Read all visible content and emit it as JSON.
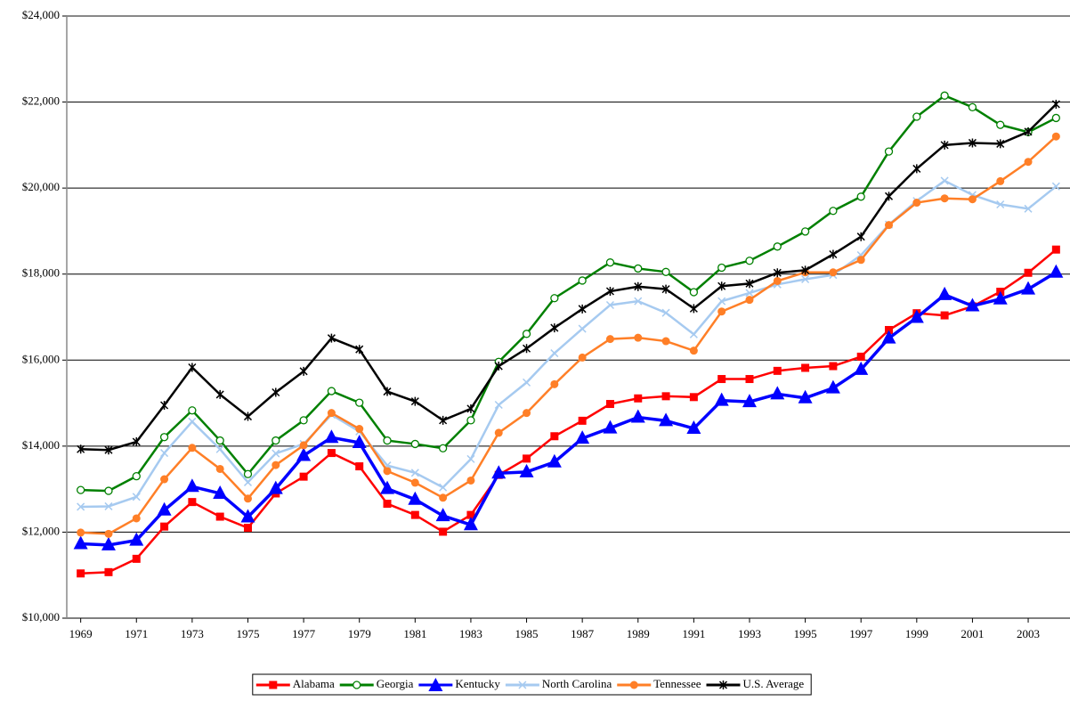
{
  "chart_data": {
    "type": "line",
    "x": [
      1969,
      1970,
      1971,
      1972,
      1973,
      1974,
      1975,
      1976,
      1977,
      1978,
      1979,
      1980,
      1981,
      1982,
      1983,
      1984,
      1985,
      1986,
      1987,
      1988,
      1989,
      1990,
      1991,
      1992,
      1993,
      1994,
      1995,
      1996,
      1997,
      1998,
      1999,
      2000,
      2001,
      2002,
      2003,
      2004
    ],
    "xlim": [
      1968.5,
      2004.5
    ],
    "xticks": [
      1969,
      1971,
      1973,
      1975,
      1977,
      1979,
      1981,
      1983,
      1985,
      1987,
      1989,
      1991,
      1993,
      1995,
      1997,
      1999,
      2001,
      2003
    ],
    "ylim": [
      10000,
      24000
    ],
    "yticks": [
      {
        "value": 10000,
        "label": "$10,000"
      },
      {
        "value": 12000,
        "label": "$12,000"
      },
      {
        "value": 14000,
        "label": "$14,000"
      },
      {
        "value": 16000,
        "label": "$16,000"
      },
      {
        "value": 18000,
        "label": "$18,000"
      },
      {
        "value": 20000,
        "label": "$20,000"
      },
      {
        "value": 22000,
        "label": "$22,000"
      },
      {
        "value": 24000,
        "label": "$24,000"
      }
    ],
    "grid": true,
    "legend": "bottom",
    "series": [
      {
        "name": "Alabama",
        "color": "#ff0000",
        "marker": "square",
        "values": [
          11040,
          11070,
          11380,
          12130,
          12700,
          12360,
          12100,
          12900,
          13290,
          13840,
          13530,
          12660,
          12400,
          12010,
          12400,
          13330,
          13710,
          14230,
          14590,
          14980,
          15110,
          15160,
          15140,
          15560,
          15560,
          15750,
          15820,
          15860,
          16080,
          16700,
          17090,
          17040,
          17250,
          17590,
          18030,
          18570
        ]
      },
      {
        "name": "Georgia",
        "color": "#008000",
        "marker": "open-circle",
        "values": [
          12980,
          12960,
          13300,
          14210,
          14830,
          14130,
          13350,
          14130,
          14600,
          15280,
          15010,
          14130,
          14050,
          13950,
          14600,
          15960,
          16610,
          17440,
          17850,
          18270,
          18130,
          18050,
          17580,
          18150,
          18310,
          18640,
          18990,
          19470,
          19800,
          20850,
          21660,
          22150,
          21880,
          21470,
          21300,
          21630
        ]
      },
      {
        "name": "Kentucky",
        "color": "#0000ff",
        "marker": "triangle",
        "values": [
          11730,
          11700,
          11810,
          12510,
          13060,
          12900,
          12350,
          13010,
          13780,
          14200,
          14080,
          13010,
          12760,
          12380,
          12170,
          13370,
          13400,
          13630,
          14180,
          14420,
          14670,
          14590,
          14410,
          15060,
          15030,
          15210,
          15120,
          15350,
          15780,
          16510,
          16990,
          17520,
          17260,
          17420,
          17650,
          18040
        ]
      },
      {
        "name": "North Carolina",
        "color": "#a6caf0",
        "marker": "x",
        "values": [
          12590,
          12600,
          12820,
          13840,
          14570,
          13930,
          13160,
          13830,
          14050,
          14730,
          14340,
          13550,
          13380,
          13040,
          13700,
          14960,
          15480,
          16160,
          16730,
          17280,
          17370,
          17100,
          16600,
          17370,
          17560,
          17760,
          17880,
          17980,
          18440,
          19150,
          19700,
          20170,
          19840,
          19620,
          19520,
          20040
        ]
      },
      {
        "name": "Tennessee",
        "color": "#ff7f27",
        "marker": "circle",
        "values": [
          11990,
          11960,
          12320,
          13230,
          13960,
          13470,
          12780,
          13560,
          14020,
          14770,
          14400,
          13420,
          13150,
          12800,
          13200,
          14310,
          14770,
          15440,
          16060,
          16490,
          16520,
          16440,
          16220,
          17130,
          17400,
          17840,
          18040,
          18040,
          18330,
          19140,
          19660,
          19760,
          19740,
          20160,
          20610,
          21200
        ]
      },
      {
        "name": "U.S. Average",
        "color": "#000000",
        "marker": "star",
        "values": [
          13930,
          13910,
          14100,
          14950,
          15830,
          15200,
          14690,
          15250,
          15740,
          16510,
          16250,
          15270,
          15040,
          14600,
          14870,
          15860,
          16270,
          16750,
          17190,
          17600,
          17710,
          17650,
          17200,
          17720,
          17780,
          18030,
          18090,
          18460,
          18870,
          19810,
          20450,
          21000,
          21050,
          21030,
          21310,
          21950
        ]
      }
    ]
  }
}
